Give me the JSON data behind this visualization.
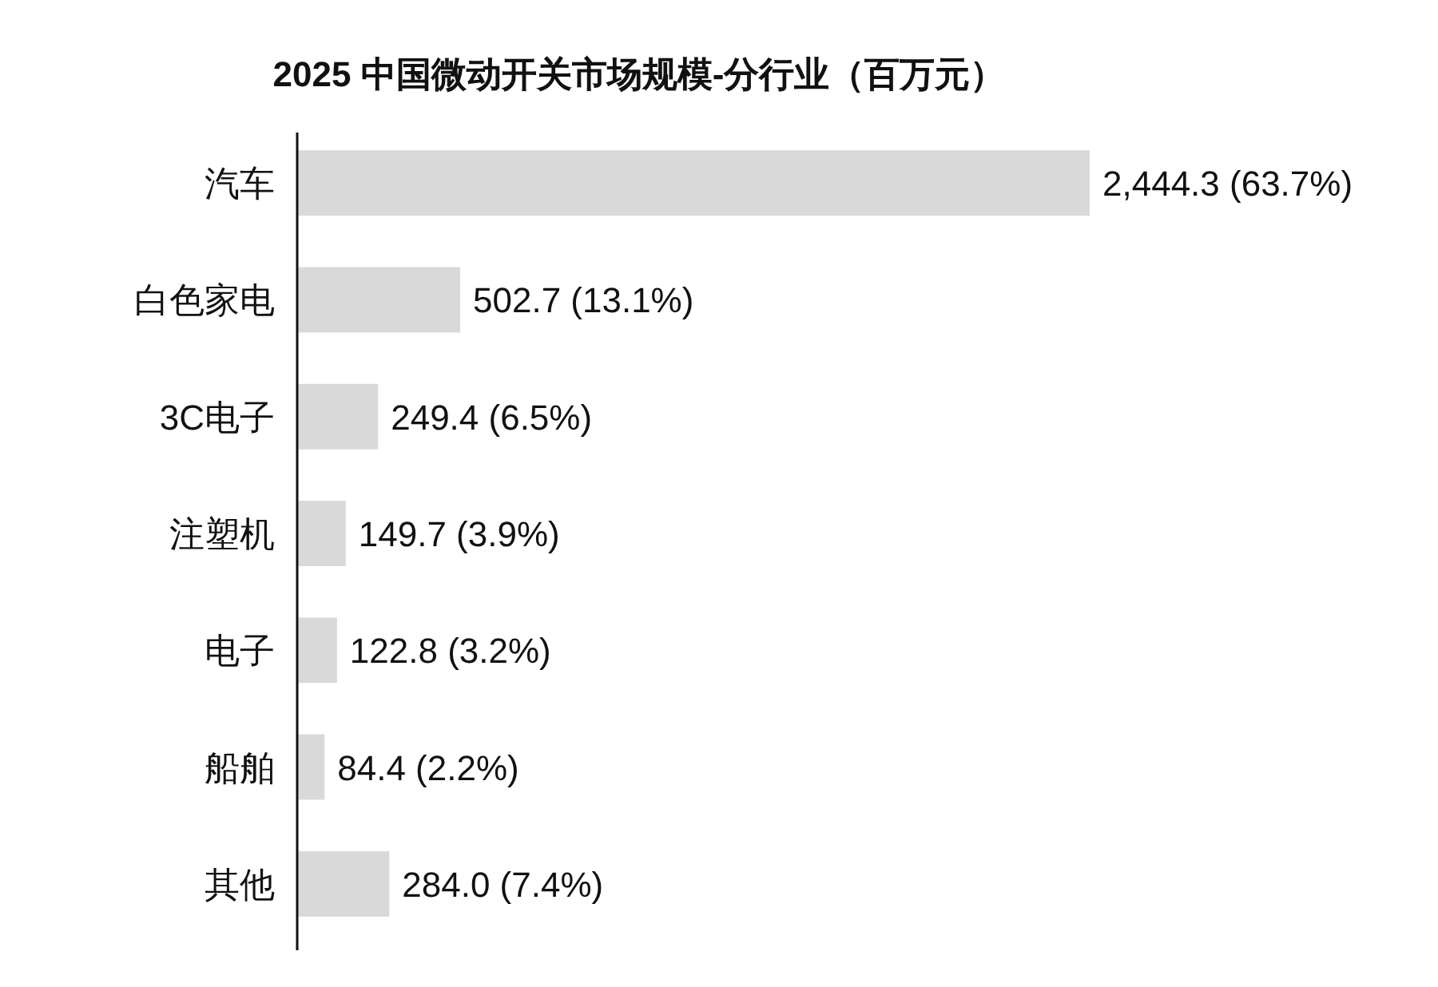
{
  "chart_data": {
    "type": "bar",
    "orientation": "horizontal",
    "title": "2025 中国微动开关市场规模-分行业（百万元）",
    "categories": [
      "汽车",
      "白色家电",
      "3C电子",
      "注塑机",
      "电子",
      "船舶",
      "其他"
    ],
    "values": [
      2444.3,
      502.7,
      249.4,
      149.7,
      122.8,
      84.4,
      284.0
    ],
    "value_labels": [
      "2,444.3 (63.7%)",
      "502.7 (13.1%)",
      "249.4 (6.5%)",
      "149.7 (3.9%)",
      "122.8 (3.2%)",
      "84.4 (2.2%)",
      "284.0 (7.4%)"
    ],
    "color": "#d9d9d9"
  }
}
